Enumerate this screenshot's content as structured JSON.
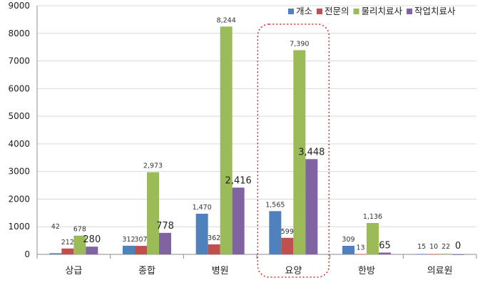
{
  "chart_data": {
    "type": "bar",
    "title": "",
    "xlabel": "",
    "ylabel": "",
    "ylim": [
      0,
      9000
    ],
    "yticks": [
      "0",
      "1000",
      "2000",
      "3000",
      "4000",
      "5000",
      "6000",
      "7000",
      "8000",
      "9000"
    ],
    "grid": true,
    "legend_position": "top-right",
    "highlighted_category": "요양",
    "categories": [
      "상급",
      "종합",
      "병원",
      "요양",
      "한방",
      "의료원"
    ],
    "series": [
      {
        "name": "개소",
        "color": "#4F81BD",
        "values": [
          42,
          312,
          1470,
          1565,
          309,
          15
        ],
        "labels": [
          "42",
          "312",
          "1,470",
          "1,565",
          "309",
          "15"
        ]
      },
      {
        "name": "전문의",
        "color": "#C0504D",
        "values": [
          212,
          307,
          362,
          599,
          13,
          10
        ],
        "labels": [
          "212",
          "307",
          "362",
          "599",
          "13",
          "10"
        ]
      },
      {
        "name": "물리치료사",
        "color": "#9BBB59",
        "values": [
          678,
          2973,
          8244,
          7390,
          1136,
          22
        ],
        "labels": [
          "678",
          "2,973",
          "8,244",
          "7,390",
          "1,136",
          "22"
        ]
      },
      {
        "name": "작업치료사",
        "color": "#8064A2",
        "values": [
          280,
          778,
          2416,
          3448,
          65,
          0
        ],
        "labels": [
          "280",
          "778",
          "2,416",
          "3,448",
          "65",
          "0"
        ]
      }
    ]
  }
}
